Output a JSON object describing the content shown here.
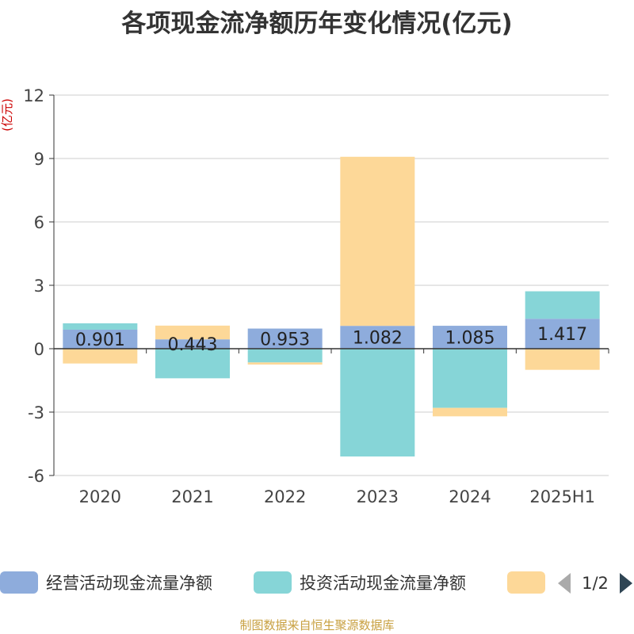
{
  "page": {
    "title": "各项现金流净额历年变化情况(亿元)",
    "footer": "制图数据来自恒生聚源数据库"
  },
  "legend": {
    "page_indicator": "1/2",
    "prev_icon": "triangle-left-icon",
    "next_icon": "triangle-right-icon"
  },
  "colors": {
    "operating": "#8eacdc",
    "investing": "#86d5d7",
    "financing": "#fdd898",
    "ylabel": "#cc0000",
    "legend_prev_arrow": "#aaaaaa",
    "legend_next_arrow": "#2f4554"
  },
  "chart_data": {
    "type": "bar",
    "stacked": true,
    "title": "各项现金流净额历年变化情况(亿元)",
    "ylabel": "(亿元)",
    "xlabel": "",
    "categories": [
      "2020",
      "2021",
      "2022",
      "2023",
      "2024",
      "2025H1"
    ],
    "ylim": [
      -6,
      12
    ],
    "yticks": [
      -6,
      -3,
      0,
      3,
      6,
      9,
      12
    ],
    "grid": true,
    "legend_position": "bottom",
    "series": [
      {
        "name": "经营活动现金流量净额",
        "values": [
          0.901,
          0.443,
          0.953,
          1.082,
          1.085,
          1.417
        ],
        "labels_shown": true
      },
      {
        "name": "投资活动现金流量净额",
        "values": [
          0.3,
          -1.4,
          -0.65,
          -5.1,
          -2.8,
          1.3
        ],
        "labels_shown": false
      },
      {
        "name": "",
        "values": [
          -0.7,
          0.65,
          -0.1,
          8.0,
          -0.4,
          -1.0
        ],
        "labels_shown": false
      }
    ]
  }
}
